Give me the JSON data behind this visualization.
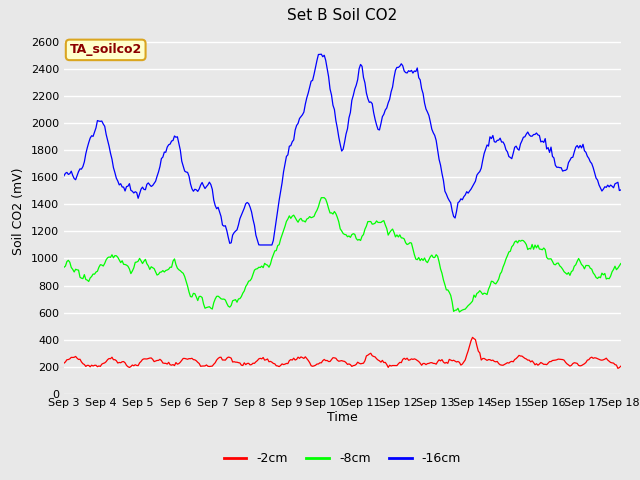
{
  "title": "Set B Soil CO2",
  "ylabel": "Soil CO2 (mV)",
  "xlabel": "Time",
  "annotation_label": "TA_soilco2",
  "annotation_text_color": "#8B0000",
  "annotation_bg_color": "#FFFFCC",
  "annotation_border_color": "#DAA520",
  "ylim": [
    0,
    2700
  ],
  "fig_bg_color": "#E8E8E8",
  "plot_bg_color": "#E8E8E8",
  "grid_color": "#FFFFFF",
  "line_colors": {
    "red": "#FF0000",
    "green": "#00FF00",
    "blue": "#0000FF"
  },
  "legend_labels": [
    "-2cm",
    "-8cm",
    "-16cm"
  ],
  "xtick_labels": [
    "Sep 3",
    "Sep 4",
    "Sep 5",
    "Sep 6",
    "Sep 7",
    "Sep 8",
    "Sep 9",
    "Sep 10",
    "Sep 11",
    "Sep 12",
    "Sep 13",
    "Sep 14",
    "Sep 15",
    "Sep 16",
    "Sep 17",
    "Sep 18"
  ],
  "ytick_values": [
    0,
    200,
    400,
    600,
    800,
    1000,
    1200,
    1400,
    1600,
    1800,
    2000,
    2200,
    2400,
    2600
  ],
  "title_fontsize": 11,
  "label_fontsize": 9,
  "tick_fontsize": 8
}
